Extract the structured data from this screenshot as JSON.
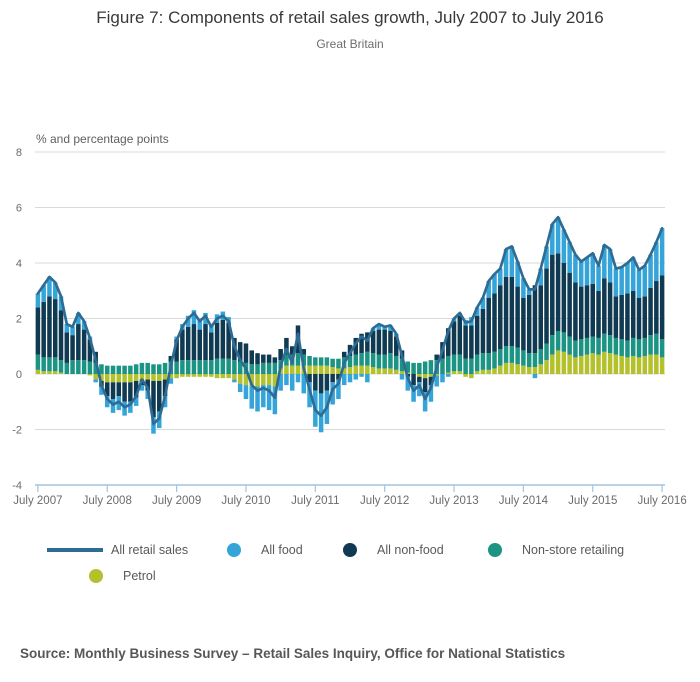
{
  "title": "Figure 7: Components of retail sales growth, July 2007 to July 2016",
  "subtitle": "Great Britain",
  "source": "Source: Monthly Business Survey – Retail Sales Inquiry, Office for National Statistics",
  "colors": {
    "line": "#2e6c94",
    "food": "#35a4d9",
    "nonfood": "#0f3a52",
    "nonstore": "#1b9484",
    "petrol": "#b2c12c",
    "grid": "#d9d9d9",
    "axis": "#a3c4df",
    "tick_text": "#6b6b6b"
  },
  "legend": [
    {
      "label": "All retail sales",
      "type": "line",
      "color": "#2e6c94"
    },
    {
      "label": "All food",
      "type": "dot",
      "color": "#35a4d9"
    },
    {
      "label": "All non-food",
      "type": "dot",
      "color": "#0f3a52"
    },
    {
      "label": "Non-store retailing",
      "type": "dot",
      "color": "#1b9484"
    },
    {
      "label": "Petrol",
      "type": "dot",
      "color": "#b2c12c"
    }
  ],
  "chart_data": {
    "type": "bar",
    "subtype": "stacked-bars-with-line-overlay",
    "unit_label": "% and percentage points",
    "x_unit": "month",
    "x_start": "July 2007",
    "x_end": "July 2016",
    "n_months": 109,
    "x_ticks": [
      "July 2007",
      "July 2008",
      "July 2009",
      "July 2010",
      "July 2011",
      "July 2012",
      "July 2013",
      "July 2014",
      "July 2015",
      "July 2016"
    ],
    "y_ticks": [
      8,
      6,
      4,
      2,
      0,
      -2,
      -4
    ],
    "ylim": [
      -4,
      8
    ],
    "grid": true,
    "legend_position": "bottom",
    "stack_order_from_zero": [
      "Petrol",
      "Non-store retailing",
      "All non-food",
      "All food"
    ],
    "series": [
      {
        "name": "All food",
        "color": "#35a4d9",
        "values": [
          0.5,
          0.6,
          0.7,
          0.6,
          0.5,
          0.3,
          0.3,
          0.4,
          0.3,
          0.1,
          -0.1,
          -0.3,
          -0.4,
          -0.5,
          -0.5,
          -0.5,
          -0.4,
          -0.3,
          -0.2,
          -0.3,
          -0.6,
          -0.6,
          -0.4,
          -0.2,
          0.1,
          0.2,
          0.4,
          0.5,
          0.4,
          0.4,
          0.3,
          0.3,
          0.3,
          0.2,
          -0.1,
          -0.3,
          -0.5,
          -0.8,
          -0.9,
          -0.8,
          -0.9,
          -1.0,
          -0.6,
          -0.4,
          -0.6,
          -0.3,
          -0.7,
          -0.9,
          -1.3,
          -1.4,
          -1.2,
          -0.8,
          -0.7,
          -0.4,
          -0.3,
          -0.2,
          -0.1,
          -0.3,
          0.1,
          0.2,
          0.1,
          0.2,
          0.1,
          -0.2,
          -0.5,
          -0.6,
          -0.5,
          -0.7,
          -0.6,
          -0.4,
          -0.3,
          -0.1,
          0.1,
          0.1,
          0.2,
          0.3,
          0.3,
          0.4,
          0.6,
          0.7,
          0.6,
          1.0,
          1.1,
          0.9,
          0.7,
          0.2,
          -0.15,
          0.6,
          0.8,
          1.1,
          1.3,
          1.2,
          1.1,
          1.0,
          0.9,
          1.0,
          1.1,
          0.9,
          1.2,
          1.2,
          1.0,
          1.0,
          1.1,
          1.2,
          1.0,
          1.1,
          1.2,
          1.4,
          1.7
        ]
      },
      {
        "name": "All non-food",
        "color": "#0f3a52",
        "values": [
          1.7,
          2.0,
          2.2,
          2.1,
          1.8,
          1.1,
          0.9,
          1.3,
          1.1,
          0.8,
          0.4,
          -0.2,
          -0.5,
          -0.6,
          -0.5,
          -0.7,
          -0.7,
          -0.6,
          -0.2,
          -0.4,
          -1.3,
          -1.1,
          -0.6,
          0.2,
          0.8,
          1.1,
          1.2,
          1.3,
          1.1,
          1.3,
          1.0,
          1.3,
          1.4,
          1.3,
          0.8,
          0.7,
          0.7,
          0.5,
          0.4,
          0.3,
          0.3,
          0.2,
          0.4,
          0.6,
          0.3,
          1.0,
          0.2,
          -0.3,
          -0.6,
          -0.7,
          -0.6,
          -0.3,
          -0.2,
          0.2,
          0.4,
          0.6,
          0.7,
          0.7,
          0.8,
          0.9,
          0.9,
          0.8,
          0.7,
          0.3,
          -0.1,
          -0.4,
          -0.2,
          -0.5,
          -0.3,
          0.2,
          0.6,
          1.0,
          1.2,
          1.4,
          1.2,
          1.2,
          1.4,
          1.6,
          2.0,
          2.1,
          2.3,
          2.5,
          2.5,
          2.2,
          1.9,
          2.1,
          2.45,
          2.3,
          2.7,
          2.9,
          2.8,
          2.5,
          2.3,
          2.1,
          1.9,
          1.9,
          1.9,
          1.7,
          2.0,
          1.9,
          1.5,
          1.6,
          1.7,
          1.7,
          1.5,
          1.5,
          1.7,
          1.9,
          2.3
        ]
      },
      {
        "name": "Non-store retailing",
        "color": "#1b9484",
        "values": [
          0.55,
          0.5,
          0.5,
          0.5,
          0.45,
          0.4,
          0.5,
          0.5,
          0.5,
          0.45,
          0.4,
          0.35,
          0.3,
          0.3,
          0.3,
          0.3,
          0.3,
          0.35,
          0.4,
          0.4,
          0.35,
          0.35,
          0.4,
          0.45,
          0.45,
          0.5,
          0.5,
          0.5,
          0.5,
          0.5,
          0.5,
          0.55,
          0.55,
          0.55,
          0.5,
          0.45,
          0.4,
          0.35,
          0.35,
          0.4,
          0.4,
          0.4,
          0.3,
          0.4,
          0.4,
          0.45,
          0.4,
          0.35,
          0.3,
          0.3,
          0.3,
          0.3,
          0.35,
          0.4,
          0.4,
          0.4,
          0.45,
          0.5,
          0.5,
          0.5,
          0.5,
          0.55,
          0.5,
          0.45,
          0.4,
          0.4,
          0.4,
          0.45,
          0.5,
          0.5,
          0.55,
          0.6,
          0.6,
          0.6,
          0.55,
          0.55,
          0.6,
          0.6,
          0.6,
          0.6,
          0.6,
          0.6,
          0.6,
          0.6,
          0.55,
          0.5,
          0.5,
          0.55,
          0.6,
          0.7,
          0.7,
          0.7,
          0.65,
          0.6,
          0.6,
          0.6,
          0.6,
          0.6,
          0.65,
          0.65,
          0.6,
          0.6,
          0.6,
          0.65,
          0.65,
          0.65,
          0.7,
          0.75,
          0.65
        ]
      },
      {
        "name": "Petrol",
        "color": "#b2c12c",
        "values": [
          0.15,
          0.1,
          0.1,
          0.1,
          0.05,
          0.0,
          0.0,
          0.0,
          0.0,
          -0.05,
          -0.2,
          -0.25,
          -0.3,
          -0.3,
          -0.3,
          -0.3,
          -0.3,
          -0.25,
          -0.2,
          -0.2,
          -0.25,
          -0.25,
          -0.2,
          -0.15,
          -0.15,
          -0.1,
          -0.1,
          -0.1,
          -0.1,
          -0.1,
          -0.1,
          -0.15,
          -0.15,
          -0.15,
          -0.2,
          -0.35,
          -0.4,
          -0.45,
          -0.45,
          -0.4,
          -0.4,
          -0.45,
          0.2,
          0.3,
          0.3,
          0.3,
          0.3,
          0.3,
          0.3,
          0.3,
          0.3,
          0.25,
          0.2,
          0.2,
          0.25,
          0.3,
          0.3,
          0.3,
          0.25,
          0.2,
          0.2,
          0.2,
          0.15,
          0.1,
          0.05,
          0.0,
          -0.1,
          -0.15,
          -0.1,
          -0.05,
          0.0,
          0.05,
          0.1,
          0.1,
          -0.1,
          -0.15,
          0.1,
          0.15,
          0.15,
          0.2,
          0.3,
          0.4,
          0.4,
          0.35,
          0.3,
          0.25,
          0.25,
          0.35,
          0.5,
          0.7,
          0.85,
          0.8,
          0.7,
          0.6,
          0.65,
          0.7,
          0.75,
          0.7,
          0.8,
          0.75,
          0.7,
          0.65,
          0.6,
          0.65,
          0.6,
          0.65,
          0.7,
          0.7,
          0.6
        ]
      }
    ],
    "line_series": {
      "name": "All retail sales",
      "color": "#2e6c94",
      "values": [
        2.9,
        3.2,
        3.5,
        3.3,
        2.8,
        1.8,
        1.7,
        2.2,
        1.9,
        1.3,
        0.5,
        -0.4,
        -0.9,
        -1.1,
        -1.0,
        -1.2,
        -1.1,
        -0.8,
        -0.2,
        -0.5,
        -1.8,
        -1.6,
        -0.8,
        0.3,
        1.2,
        1.7,
        2.0,
        2.2,
        1.9,
        2.1,
        1.7,
        2.0,
        2.1,
        1.9,
        1.0,
        0.5,
        0.2,
        -0.4,
        -0.6,
        -0.5,
        -0.6,
        -0.85,
        0.3,
        0.9,
        0.4,
        1.45,
        0.2,
        -0.55,
        -1.3,
        -1.5,
        -1.2,
        -0.55,
        -0.35,
        0.4,
        0.75,
        1.1,
        1.35,
        1.2,
        1.65,
        1.8,
        1.7,
        1.75,
        1.45,
        0.65,
        -0.15,
        -0.6,
        -0.4,
        -0.9,
        -0.5,
        0.25,
        0.85,
        1.55,
        2.0,
        2.2,
        1.85,
        1.9,
        2.4,
        2.75,
        3.35,
        3.6,
        3.8,
        4.5,
        4.6,
        4.05,
        3.45,
        3.05,
        3.05,
        3.8,
        4.6,
        5.4,
        5.65,
        5.2,
        4.75,
        4.3,
        4.05,
        4.2,
        4.35,
        3.9,
        4.65,
        4.5,
        3.8,
        3.85,
        4.0,
        4.2,
        3.75,
        3.9,
        4.3,
        4.75,
        5.25
      ]
    }
  }
}
